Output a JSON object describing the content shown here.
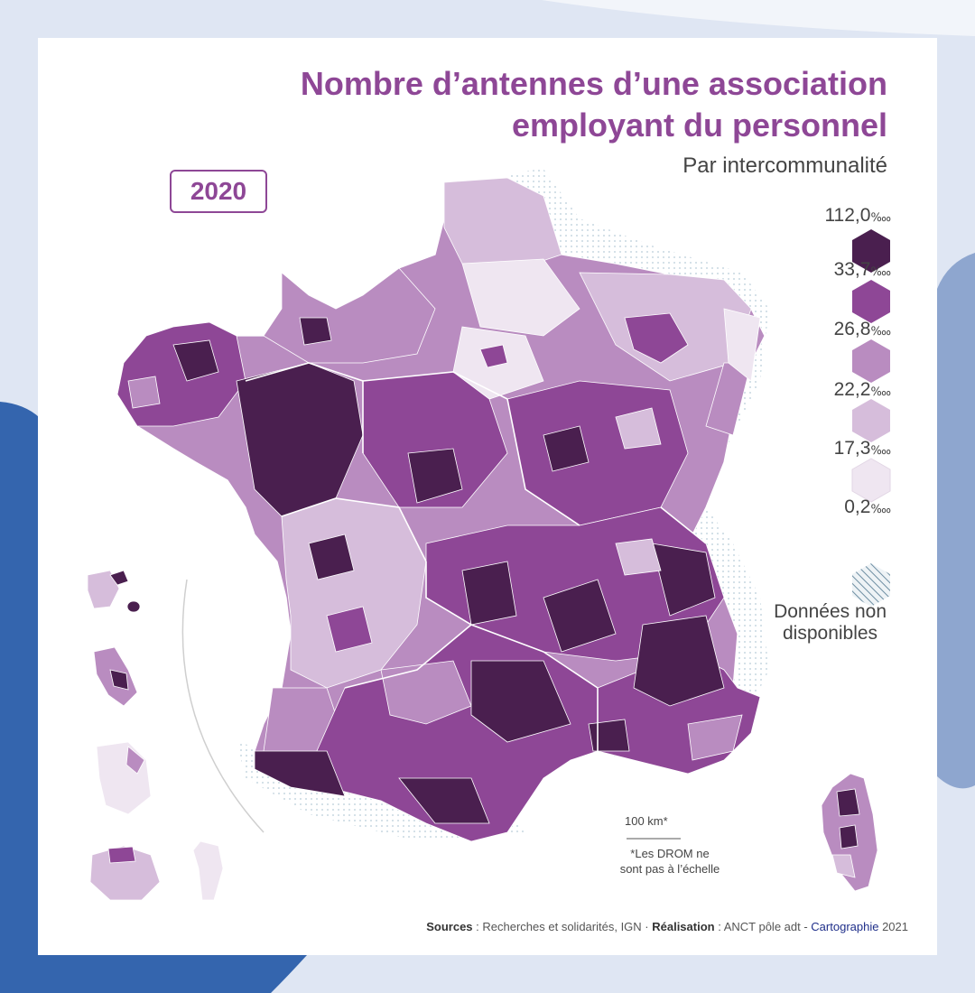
{
  "title": {
    "line1": "Nombre d’antennes d’une association",
    "line2": "employant du personnel"
  },
  "subtitle": "Par intercommunalité",
  "year": "2020",
  "legend": {
    "classes": [
      {
        "value": "112,0",
        "unit": "‱",
        "color": "#4a1f4f"
      },
      {
        "value": "33,7",
        "unit": "‱",
        "color": "#8e4796"
      },
      {
        "value": "26,8",
        "unit": "‱",
        "color": "#b98cc0"
      },
      {
        "value": "22,2",
        "unit": "‱",
        "color": "#d6bddb"
      },
      {
        "value": "17,3",
        "unit": "‱",
        "color": "#efe6f1"
      },
      {
        "value": "0,2",
        "unit": "‱"
      }
    ],
    "na_line1": "Données non",
    "na_line2": "disponibles"
  },
  "scale": {
    "label": "100 km*"
  },
  "drom_note": {
    "line1": "*Les DROM ne",
    "line2": "sont pas à l’échelle"
  },
  "sources": {
    "sources_label": "Sources",
    "sources_text": " : Recherches et solidarités, IGN · ",
    "realisation_label": "Réalisation",
    "realisation_text": " : ANCT pôle adt - ",
    "carto": "Cartographie",
    "year": " 2021"
  },
  "colors": {
    "accent": "#8e4796",
    "dark": "#4a1f4f",
    "blue_shape": "#3465ae",
    "light_blue_shape": "#8ea6cf"
  }
}
